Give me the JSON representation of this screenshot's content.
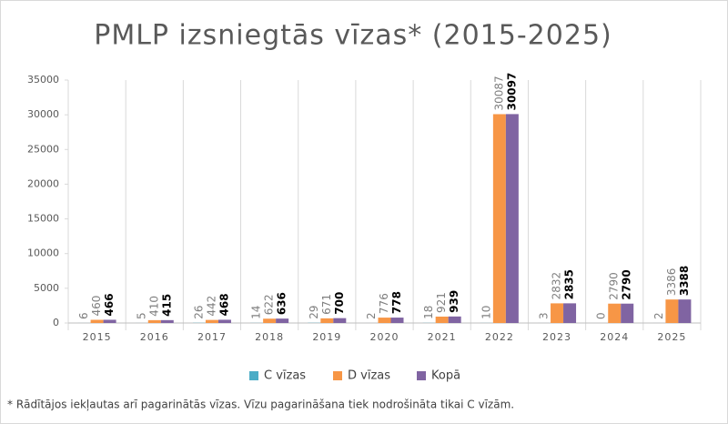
{
  "chart_data": {
    "type": "bar",
    "title": "PMLP izsniegtās vīzas* (2015-2025)",
    "categories": [
      "2015",
      "2016",
      "2017",
      "2018",
      "2019",
      "2020",
      "2021",
      "2022",
      "2023",
      "2024",
      "2025"
    ],
    "series": [
      {
        "name": "C vīzas",
        "color": "#4bacc6",
        "values": [
          6,
          5,
          26,
          14,
          29,
          2,
          18,
          10,
          3,
          0,
          2
        ]
      },
      {
        "name": "D vīzas",
        "color": "#f79646",
        "values": [
          460,
          410,
          442,
          622,
          671,
          776,
          921,
          30087,
          2832,
          2790,
          3386
        ]
      },
      {
        "name": "Kopā",
        "color": "#8064a2",
        "values": [
          466,
          415,
          468,
          636,
          700,
          778,
          939,
          30097,
          2835,
          2790,
          3388
        ]
      }
    ],
    "ylim": [
      0,
      35000
    ],
    "yticks": [
      0,
      5000,
      10000,
      15000,
      20000,
      25000,
      30000,
      35000
    ],
    "legend": "bottom",
    "footnote": "* Rādītājos iekļautas arī pagarinātās vīzas. Vīzu pagarināšana tiek nodrošināta tikai C vīzām."
  }
}
